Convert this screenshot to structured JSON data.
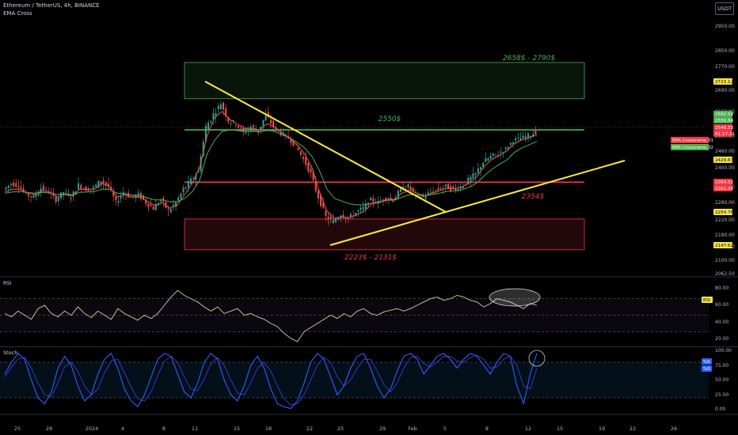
{
  "header": {
    "symbol": "Ethereum / TetherUS, 4h, BINANCE",
    "indicator": "EMA Cross"
  },
  "currency_button": "USDT",
  "colors": {
    "up": "#26a69a",
    "down": "#ef5350",
    "ema_fast": "#ef5350",
    "ema_slow": "#4caf50",
    "trend": "#ffeb3b",
    "green_zone": "#4caf50",
    "red_zone": "#f23645",
    "rsi": "#d8cfa0",
    "stoch_k": "#2962ff",
    "stoch_d": "#3d3dd6"
  },
  "chart_data": [
    {
      "type": "candlestick",
      "title": "Ethereum / TetherUS, 4h, BINANCE",
      "y_ticks": [
        "2950.00",
        "2850.00",
        "2770.00",
        "2690.00",
        "2610.00",
        "2530.00",
        "2460.00",
        "2400.00",
        "2340.00",
        "2280.00",
        "2220.00",
        "2180.00",
        "2140.00",
        "2100.00",
        "2062.50"
      ],
      "ylim": [
        2062.5,
        3000
      ],
      "x_ticks": [
        "25",
        "28",
        "2024",
        "4",
        "8",
        "11",
        "15",
        "18",
        "22",
        "25",
        "29",
        "Feb",
        "5",
        "8",
        "12",
        "15",
        "19",
        "22",
        "26"
      ],
      "price_path": [
        2330,
        2350,
        2345,
        2310,
        2300,
        2335,
        2320,
        2290,
        2320,
        2300,
        2345,
        2330,
        2335,
        2360,
        2340,
        2280,
        2320,
        2300,
        2310,
        2280,
        2260,
        2290,
        2250,
        2280,
        2330,
        2360,
        2390,
        2560,
        2600,
        2640,
        2580,
        2570,
        2540,
        2560,
        2545,
        2600,
        2560,
        2540,
        2520,
        2480,
        2430,
        2380,
        2300,
        2230,
        2215,
        2240,
        2225,
        2245,
        2260,
        2290,
        2280,
        2300,
        2290,
        2330,
        2340,
        2310,
        2300,
        2320,
        2330,
        2340,
        2330,
        2340,
        2360,
        2380,
        2420,
        2440,
        2450,
        2470,
        2510,
        2520,
        2530,
        2545
      ],
      "ema_fast_path": [
        2320,
        2330,
        2330,
        2315,
        2310,
        2325,
        2320,
        2300,
        2310,
        2305,
        2330,
        2330,
        2330,
        2350,
        2340,
        2300,
        2310,
        2300,
        2300,
        2285,
        2270,
        2280,
        2260,
        2270,
        2310,
        2350,
        2400,
        2530,
        2590,
        2610,
        2585,
        2570,
        2555,
        2555,
        2550,
        2570,
        2560,
        2540,
        2520,
        2490,
        2450,
        2400,
        2320,
        2250,
        2225,
        2230,
        2228,
        2238,
        2252,
        2275,
        2280,
        2292,
        2292,
        2315,
        2328,
        2315,
        2305,
        2315,
        2325,
        2335,
        2332,
        2338,
        2352,
        2372,
        2405,
        2430,
        2445,
        2462,
        2495,
        2512,
        2522,
        2535
      ],
      "ema_slow_path": [
        2315,
        2320,
        2322,
        2318,
        2315,
        2318,
        2316,
        2310,
        2312,
        2310,
        2318,
        2320,
        2322,
        2330,
        2330,
        2315,
        2312,
        2308,
        2305,
        2298,
        2290,
        2290,
        2283,
        2283,
        2295,
        2320,
        2360,
        2450,
        2510,
        2545,
        2550,
        2548,
        2545,
        2545,
        2544,
        2548,
        2546,
        2535,
        2522,
        2500,
        2475,
        2440,
        2390,
        2330,
        2295,
        2285,
        2275,
        2272,
        2272,
        2278,
        2282,
        2288,
        2290,
        2300,
        2310,
        2308,
        2305,
        2310,
        2315,
        2322,
        2324,
        2328,
        2338,
        2352,
        2375,
        2395,
        2412,
        2428,
        2455,
        2475,
        2490,
        2505
      ],
      "resistance_zone": {
        "label": "2658$ - 2790$",
        "low": 2658,
        "high": 2790
      },
      "level_green": {
        "label": "2550$",
        "value": 2550
      },
      "level_red": {
        "label": "2354$",
        "value": 2354
      },
      "support_zone": {
        "label": "2223$ - 2131$",
        "low": 2131,
        "high": 2223
      },
      "price_tags": [
        {
          "text": "2723.12",
          "bg": "#f5e44a",
          "fg": "#000"
        },
        {
          "text": "2582.54",
          "bg": "#4caf50",
          "fg": "#fff"
        },
        {
          "text": "2550.84",
          "bg": "#4caf50",
          "fg": "#fff"
        },
        {
          "text": "2545.33",
          "bg": "#f23645",
          "fg": "#fff"
        },
        {
          "text": "01:17:11",
          "bg": "#f23645",
          "fg": "#fff"
        },
        {
          "text": "EMA Crossznema_01",
          "bg": "#f23645",
          "fg": "#fff"
        },
        {
          "text": "EMA Crossznema_02",
          "bg": "#4caf50",
          "fg": "#fff"
        },
        {
          "text": "2429.63",
          "bg": "#f5e44a",
          "fg": "#000"
        },
        {
          "text": "2354.02",
          "bg": "#f23645",
          "fg": "#fff"
        },
        {
          "text": "2352.45",
          "bg": "#f23645",
          "fg": "#fff"
        },
        {
          "text": "2254.76",
          "bg": "#f5e44a",
          "fg": "#000"
        },
        {
          "text": "2147.62",
          "bg": "#f5e44a",
          "fg": "#000"
        }
      ]
    },
    {
      "type": "line",
      "title": "RSI",
      "y_ticks": [
        "80.00",
        "60.00",
        "40.00",
        "20.00"
      ],
      "ylim": [
        15,
        85
      ],
      "badge": "RSI",
      "values": [
        52,
        48,
        55,
        50,
        45,
        58,
        62,
        52,
        48,
        55,
        50,
        60,
        52,
        47,
        55,
        50,
        45,
        58,
        52,
        48,
        44,
        50,
        46,
        52,
        62,
        72,
        80,
        74,
        70,
        66,
        60,
        55,
        60,
        52,
        55,
        58,
        50,
        52,
        48,
        45,
        40,
        36,
        28,
        22,
        18,
        30,
        35,
        40,
        45,
        50,
        46,
        52,
        48,
        55,
        58,
        52,
        50,
        54,
        56,
        58,
        55,
        58,
        62,
        66,
        70,
        72,
        68,
        70,
        74,
        72,
        68,
        66,
        60,
        64,
        70,
        68,
        66,
        62,
        58,
        64,
        62
      ]
    },
    {
      "type": "line",
      "title": "Stoch",
      "y_ticks": [
        "100.00",
        "75.00",
        "50.00",
        "25.00",
        "0.00"
      ],
      "ylim": [
        0,
        100
      ],
      "badges": [
        "%K",
        "%D"
      ],
      "series": [
        {
          "name": "%K",
          "values": [
            60,
            80,
            95,
            85,
            50,
            20,
            10,
            30,
            70,
            90,
            75,
            40,
            15,
            25,
            60,
            85,
            95,
            70,
            35,
            15,
            5,
            25,
            55,
            85,
            95,
            90,
            60,
            30,
            20,
            45,
            80,
            95,
            85,
            50,
            25,
            15,
            40,
            75,
            90,
            70,
            35,
            10,
            5,
            2,
            15,
            45,
            80,
            95,
            85,
            55,
            25,
            40,
            70,
            90,
            95,
            70,
            40,
            20,
            35,
            65,
            90,
            95,
            85,
            60,
            75,
            90,
            95,
            85,
            70,
            85,
            95,
            90,
            75,
            60,
            80,
            95,
            90,
            40,
            10,
            60,
            95
          ]
        },
        {
          "name": "%D",
          "values": [
            55,
            72,
            85,
            88,
            70,
            45,
            25,
            22,
            45,
            72,
            80,
            65,
            40,
            25,
            35,
            62,
            82,
            85,
            62,
            38,
            18,
            15,
            30,
            58,
            82,
            90,
            80,
            55,
            35,
            32,
            52,
            78,
            88,
            75,
            50,
            28,
            25,
            45,
            70,
            80,
            65,
            40,
            18,
            8,
            10,
            25,
            50,
            75,
            88,
            80,
            55,
            40,
            50,
            70,
            85,
            85,
            65,
            42,
            30,
            45,
            70,
            88,
            90,
            78,
            72,
            80,
            90,
            90,
            82,
            80,
            88,
            92,
            85,
            70,
            72,
            85,
            90,
            75,
            40,
            35,
            70
          ]
        }
      ]
    }
  ]
}
